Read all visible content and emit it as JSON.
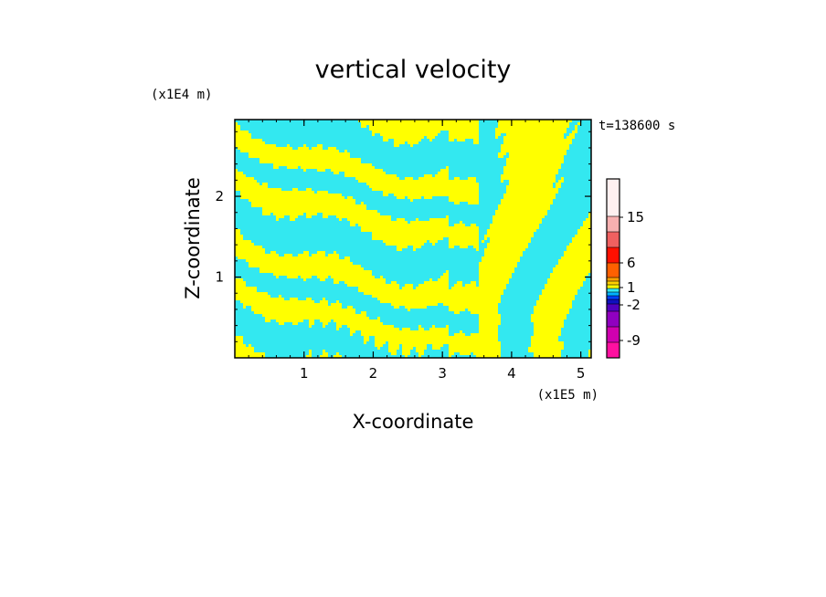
{
  "chart_data": {
    "type": "heatmap",
    "title": "vertical velocity",
    "xlabel": "X-coordinate",
    "ylabel": "Z-coordinate",
    "x_unit": "(x1E5 m)",
    "y_unit": "(x1E4 m)",
    "time_label": "t=138600 s",
    "xlim": [
      0,
      5.15
    ],
    "ylim": [
      0,
      2.95
    ],
    "x_ticks": [
      "1",
      "2",
      "3",
      "4",
      "5"
    ],
    "y_ticks": [
      "1",
      "2"
    ],
    "x_tick_values": [
      1,
      2,
      3,
      4,
      5
    ],
    "y_tick_values": [
      1,
      2
    ],
    "field_colors": {
      "negative": "#33e8f0",
      "positive": "#ffff00"
    },
    "colorbar": {
      "labels": [
        "15",
        "6",
        "1",
        "-2",
        "-9"
      ],
      "label_values": [
        15,
        6,
        1,
        -2,
        -9
      ],
      "levels": [
        {
          "color": "#ff10a0"
        },
        {
          "color": "#d000b0"
        },
        {
          "color": "#9000c0"
        },
        {
          "color": "#5000c0"
        },
        {
          "color": "#1010c0"
        },
        {
          "color": "#0040ff"
        },
        {
          "color": "#00b0ff"
        },
        {
          "color": "#33e8f0"
        },
        {
          "color": "#ffff00"
        },
        {
          "color": "#ffd000"
        },
        {
          "color": "#ffa000"
        },
        {
          "color": "#ff6000"
        },
        {
          "color": "#ff1000"
        },
        {
          "color": "#f06060"
        },
        {
          "color": "#f8b0b0"
        },
        {
          "color": "#fff0f0"
        }
      ]
    }
  }
}
